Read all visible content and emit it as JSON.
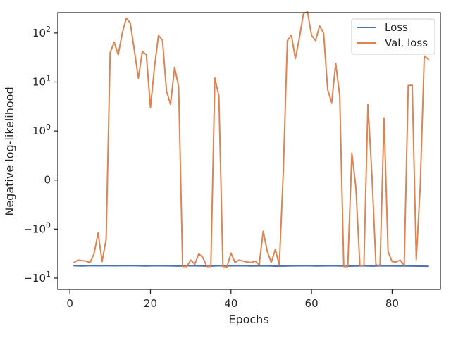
{
  "chart_data": {
    "type": "line",
    "title": "",
    "xlabel": "Epochs",
    "ylabel": "Negative log-likelihood",
    "xlim": [
      -3,
      92
    ],
    "x_ticks": [
      0,
      20,
      40,
      60,
      80
    ],
    "y_scale": "symlog",
    "y_linthresh": 1,
    "y_ticks": [
      {
        "value": -10,
        "base": "−10",
        "exp": "1"
      },
      {
        "value": -1,
        "base": "−10",
        "exp": "0"
      },
      {
        "value": 0,
        "base": "0",
        "exp": ""
      },
      {
        "value": 1,
        "base": "10",
        "exp": "0"
      },
      {
        "value": 10,
        "base": "10",
        "exp": "1"
      },
      {
        "value": 100,
        "base": "10",
        "exp": "2"
      }
    ],
    "ylim": [
      -17,
      260
    ],
    "grid": false,
    "legend": "top-right",
    "series": [
      {
        "name": "Loss",
        "color": "#4c72b0",
        "x": [
          1,
          3,
          5,
          7,
          9,
          11,
          13,
          15,
          17,
          19,
          21,
          23,
          25,
          27,
          29,
          31,
          33,
          35,
          37,
          39,
          41,
          43,
          45,
          47,
          49,
          51,
          53,
          55,
          57,
          59,
          61,
          63,
          65,
          67,
          69,
          71,
          73,
          75,
          77,
          79,
          81,
          83,
          85,
          87,
          89
        ],
        "y": [
          -5.6,
          -5.65,
          -5.6,
          -5.62,
          -5.55,
          -5.62,
          -5.6,
          -5.58,
          -5.62,
          -5.65,
          -5.6,
          -5.62,
          -5.64,
          -5.68,
          -5.6,
          -5.62,
          -5.66,
          -5.7,
          -5.6,
          -5.64,
          -5.62,
          -5.6,
          -5.66,
          -5.64,
          -5.62,
          -5.7,
          -5.68,
          -5.64,
          -5.62,
          -5.6,
          -5.66,
          -5.64,
          -5.62,
          -5.64,
          -5.7,
          -5.66,
          -5.62,
          -5.68,
          -5.64,
          -5.62,
          -5.66,
          -5.64,
          -5.68,
          -5.7,
          -5.72
        ]
      },
      {
        "name": "Val. loss",
        "color": "#dd8452",
        "x": [
          1,
          2,
          3,
          4,
          5,
          6,
          7,
          8,
          9,
          10,
          11,
          12,
          13,
          14,
          15,
          16,
          17,
          18,
          19,
          20,
          21,
          22,
          23,
          24,
          25,
          26,
          27,
          28,
          29,
          30,
          31,
          32,
          33,
          34,
          35,
          36,
          37,
          38,
          39,
          40,
          41,
          42,
          43,
          44,
          45,
          46,
          47,
          48,
          49,
          50,
          51,
          52,
          53,
          54,
          55,
          56,
          57,
          58,
          59,
          60,
          61,
          62,
          63,
          64,
          65,
          66,
          67,
          68,
          69,
          70,
          71,
          72,
          73,
          74,
          75,
          76,
          77,
          78,
          79,
          80,
          81,
          82,
          83,
          84,
          85,
          86,
          87,
          88,
          89
        ],
        "y": [
          -4.8,
          -4.3,
          -4.4,
          -4.5,
          -4.8,
          -3.2,
          -1.2,
          -4.6,
          -1.6,
          40,
          65,
          36,
          100,
          200,
          160,
          45,
          12,
          42,
          36,
          3,
          20,
          90,
          70,
          6.5,
          3.5,
          20,
          8,
          -5.8,
          -5.8,
          -4.3,
          -5.2,
          -3.2,
          -3.8,
          -5.8,
          -5.8,
          12,
          5.2,
          -5.8,
          -5.9,
          -3.1,
          -4.8,
          -4.3,
          -4.5,
          -4.7,
          -4.8,
          -4.5,
          -5.4,
          -1.1,
          -2.8,
          -4.8,
          -2.6,
          -5.4,
          0.2,
          70,
          90,
          30,
          80,
          250,
          270,
          90,
          70,
          140,
          100,
          7,
          3.8,
          24,
          5.2,
          -5.8,
          -5.8,
          0.55,
          -0.15,
          -5.5,
          -5.5,
          3.5,
          0.1,
          -5.4,
          -5.5,
          1.85,
          -2.9,
          -4.6,
          -4.7,
          -4.3,
          -5.5,
          8.5,
          8.6,
          -4.2,
          -0.1,
          34,
          29
        ]
      }
    ]
  }
}
